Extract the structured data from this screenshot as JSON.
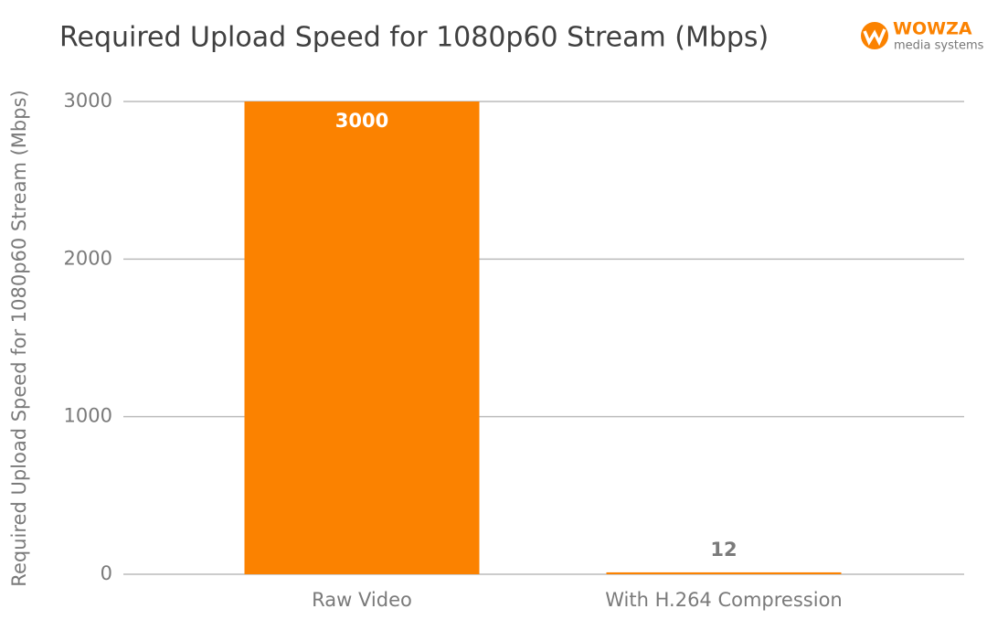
{
  "chart_data": {
    "type": "bar",
    "title": "Required Upload Speed for 1080p60 Stream (Mbps)",
    "y_label": "Required Upload Speed for 1080p60 Stream (Mbps)",
    "categories": [
      "Raw Video",
      "With H.264 Compression"
    ],
    "values": [
      3000,
      12
    ],
    "color": "#fb8200",
    "ylim": [
      0,
      3000
    ],
    "yticks": [
      0,
      1000,
      2000,
      3000
    ],
    "grid": true,
    "logo": {
      "name": "WOWZA",
      "tagline": "media systems"
    }
  }
}
